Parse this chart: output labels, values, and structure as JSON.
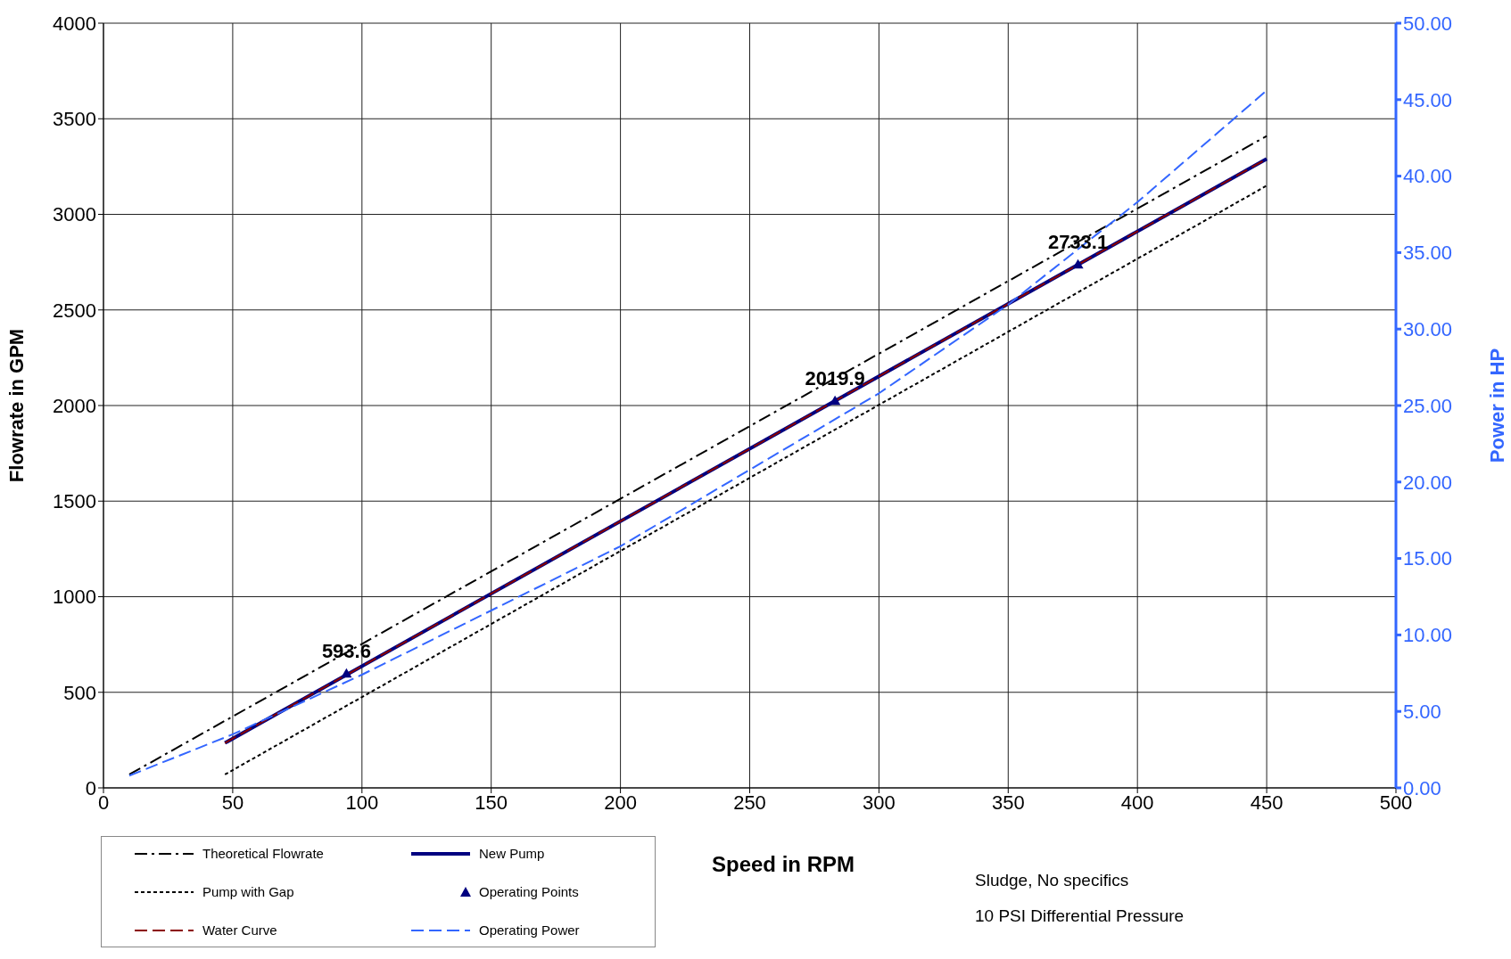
{
  "chart_data": {
    "type": "line",
    "xlabel": "Speed in RPM",
    "ylabel": "Flowrate in GPM",
    "y2label": "Power in HP",
    "xlim": [
      0,
      500
    ],
    "xticks": [
      0,
      50,
      100,
      150,
      200,
      250,
      300,
      350,
      400,
      450,
      500
    ],
    "ylim": [
      0,
      4000
    ],
    "yticks": [
      0,
      500,
      1000,
      1500,
      2000,
      2500,
      3000,
      3500,
      4000
    ],
    "y2lim": [
      0,
      50
    ],
    "y2ticks": [
      {
        "value": 0,
        "label": "0.00"
      },
      {
        "value": 5,
        "label": "5.00"
      },
      {
        "value": 10,
        "label": "10.00"
      },
      {
        "value": 15,
        "label": "15.00"
      },
      {
        "value": 20,
        "label": "20.00"
      },
      {
        "value": 25,
        "label": "25.00"
      },
      {
        "value": 30,
        "label": "30.00"
      },
      {
        "value": 35,
        "label": "35.00"
      },
      {
        "value": 40,
        "label": "40.00"
      },
      {
        "value": 45,
        "label": "45.00"
      },
      {
        "value": 50,
        "label": "50.00"
      }
    ],
    "grid": true,
    "legend": "bottom left",
    "marker": "none",
    "annotations": [
      "Sludge, No specifics",
      "10 PSI Differential Pressure"
    ],
    "series": [
      {
        "name": "Theoretical Flowrate",
        "color": "#000000",
        "line_style": "dashdot",
        "x": [
          10,
          450
        ],
        "values": [
          70,
          3410
        ]
      },
      {
        "name": "New Pump",
        "color": "#000080",
        "line_style": "solid",
        "x": [
          47,
          450
        ],
        "values": [
          235,
          3290
        ]
      },
      {
        "name": "Pump with Gap",
        "color": "#000000",
        "line_style": "dotted",
        "x": [
          47,
          450
        ],
        "values": [
          70,
          3150
        ]
      },
      {
        "name": "Operating Points",
        "type": "scatter",
        "marker": "triangle",
        "color": "#000080",
        "x": [
          94,
          283,
          377
        ],
        "values": [
          593.6,
          2019.9,
          2733.1
        ],
        "value_labels": [
          "593.6",
          "2019.9",
          "2733.1"
        ]
      },
      {
        "name": "Water Curve",
        "color": "#8b0000",
        "line_style": "dashed",
        "x": [
          47,
          450
        ],
        "values": [
          235,
          3290
        ]
      },
      {
        "name": "Operating Power",
        "color": "#3366ff",
        "line_style": "dashed",
        "axis": "y2",
        "x": [
          10,
          50,
          100,
          200,
          300,
          350,
          400,
          450
        ],
        "values": [
          0.8,
          3.5,
          7.4,
          15.8,
          25.8,
          31.6,
          38.3,
          45.6
        ]
      }
    ]
  }
}
